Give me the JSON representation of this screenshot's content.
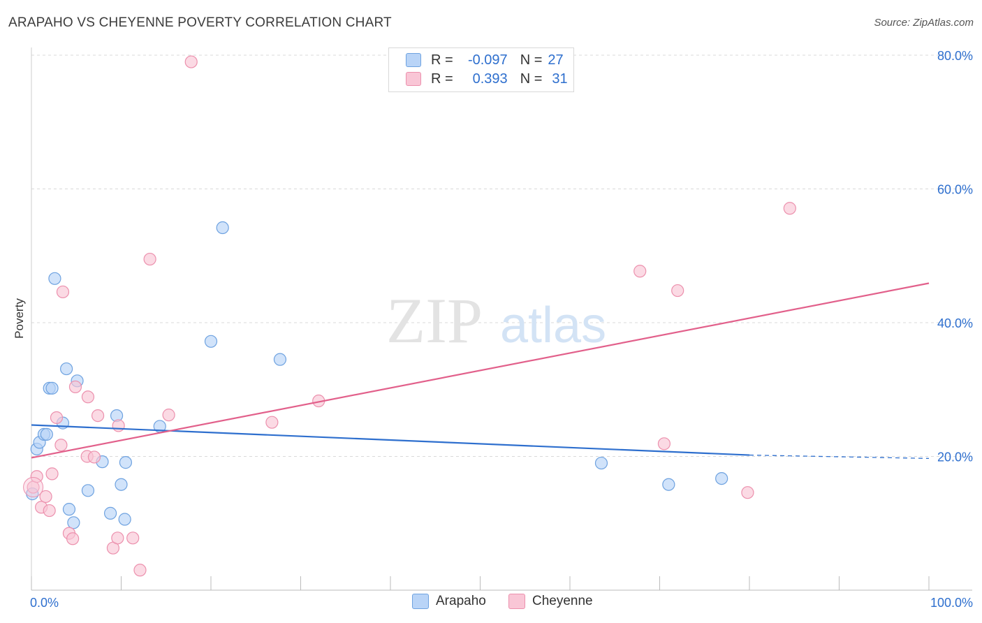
{
  "title": "ARAPAHO VS CHEYENNE POVERTY CORRELATION CHART",
  "source": "Source: ZipAtlas.com",
  "watermark": {
    "zip": "ZIP",
    "atlas": "atlas"
  },
  "legend": {
    "r_label": "R =",
    "n_label": "N =",
    "rows": [
      {
        "r": "-0.097",
        "n": "27"
      },
      {
        "r": "0.393",
        "n": "31"
      }
    ]
  },
  "colors": {
    "arapaho_fill": "#b9d4f7",
    "arapaho_stroke": "#6ea2e0",
    "arapaho_line": "#2e6fce",
    "cheyenne_fill": "#f9c6d6",
    "cheyenne_stroke": "#ec90ad",
    "cheyenne_line": "#e2608b",
    "tick_text": "#2e6fce",
    "grid": "#d9d9d9"
  },
  "chart_data": {
    "type": "scatter",
    "title": "ARAPAHO VS CHEYENNE POVERTY CORRELATION CHART",
    "xlabel": "",
    "ylabel": "Poverty",
    "xlim": [
      0,
      100
    ],
    "ylim": [
      0,
      80
    ],
    "x_tick_labels": [
      "0.0%",
      "100.0%"
    ],
    "y_ticks": [
      20,
      40,
      60,
      80
    ],
    "y_tick_labels": [
      "20.0%",
      "40.0%",
      "60.0%",
      "80.0%"
    ],
    "grid": true,
    "legend_position": "bottom",
    "series": [
      {
        "name": "Arapaho",
        "r": -0.097,
        "n": 27,
        "trend": {
          "x0": 0,
          "y0": 24.7,
          "x1": 80,
          "y1": 20.2,
          "dashed_to_x": 100,
          "dashed_to_y": 19.7
        },
        "points": [
          [
            0.1,
            14.4
          ],
          [
            0.6,
            21.1
          ],
          [
            0.9,
            22.1
          ],
          [
            1.4,
            23.3
          ],
          [
            1.7,
            23.3
          ],
          [
            2.0,
            30.2
          ],
          [
            2.3,
            30.2
          ],
          [
            2.6,
            46.6
          ],
          [
            3.5,
            25.0
          ],
          [
            3.9,
            33.1
          ],
          [
            4.2,
            12.1
          ],
          [
            4.7,
            10.1
          ],
          [
            5.1,
            31.3
          ],
          [
            6.3,
            14.9
          ],
          [
            7.9,
            19.2
          ],
          [
            8.8,
            11.5
          ],
          [
            9.5,
            26.1
          ],
          [
            10.0,
            15.8
          ],
          [
            10.4,
            10.6
          ],
          [
            10.5,
            19.1
          ],
          [
            14.3,
            24.5
          ],
          [
            20.0,
            37.2
          ],
          [
            21.3,
            54.2
          ],
          [
            27.7,
            34.5
          ],
          [
            63.5,
            19.0
          ],
          [
            71.0,
            15.8
          ],
          [
            76.9,
            16.7
          ]
        ]
      },
      {
        "name": "Cheyenne",
        "r": 0.393,
        "n": 31,
        "trend": {
          "x0": 0,
          "y0": 19.8,
          "x1": 100,
          "y1": 45.9
        },
        "points": [
          [
            0.2,
            15.4
          ],
          [
            0.6,
            17.0
          ],
          [
            1.1,
            12.4
          ],
          [
            1.6,
            14.0
          ],
          [
            2.0,
            11.9
          ],
          [
            2.3,
            17.4
          ],
          [
            2.8,
            25.8
          ],
          [
            3.3,
            21.7
          ],
          [
            3.5,
            44.6
          ],
          [
            4.2,
            8.5
          ],
          [
            4.6,
            7.7
          ],
          [
            4.9,
            30.4
          ],
          [
            6.2,
            20.0
          ],
          [
            6.3,
            28.9
          ],
          [
            7.0,
            19.9
          ],
          [
            7.4,
            26.1
          ],
          [
            9.1,
            6.3
          ],
          [
            9.6,
            7.8
          ],
          [
            9.7,
            24.6
          ],
          [
            11.3,
            7.8
          ],
          [
            12.1,
            3.0
          ],
          [
            13.2,
            49.5
          ],
          [
            15.3,
            26.2
          ],
          [
            17.8,
            79.0
          ],
          [
            26.8,
            25.1
          ],
          [
            32.0,
            28.3
          ],
          [
            70.5,
            21.9
          ],
          [
            67.8,
            47.7
          ],
          [
            72.0,
            44.8
          ],
          [
            79.8,
            14.6
          ],
          [
            84.5,
            57.1
          ]
        ]
      }
    ]
  },
  "bottom_legend": [
    "Arapaho",
    "Cheyenne"
  ]
}
